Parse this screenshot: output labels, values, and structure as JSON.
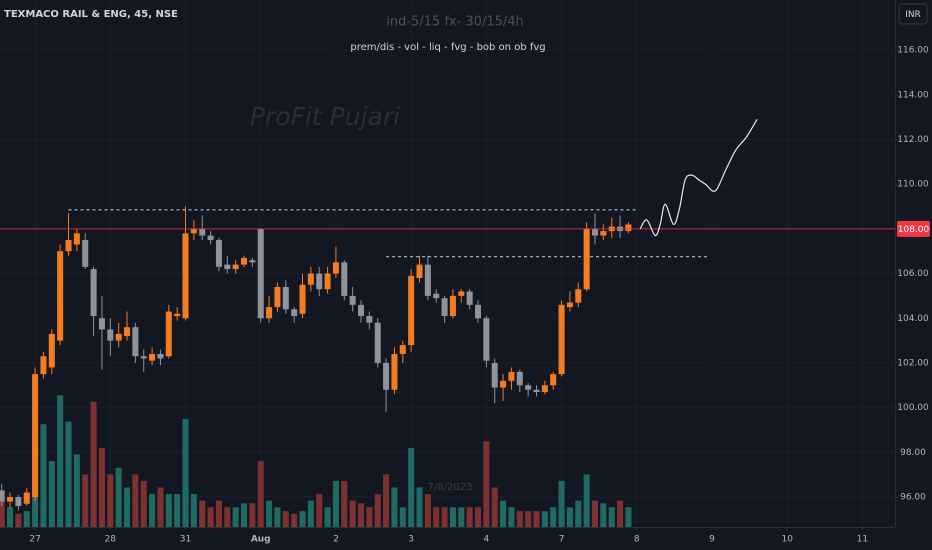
{
  "chart_data": {
    "type": "candlestick",
    "title": "TEXMACO RAIL & ENG, 45, NSE",
    "subtitle": "ind-5/15 fx- 30/15/4h",
    "annotation": "prem/dis - vol - liq - fvg - bob on ob fvg",
    "watermark": "ProFit Pujari",
    "date_label": "7/8/2023",
    "currency": "INR",
    "up_color": "#f57c1f",
    "down_color": "#8f939c",
    "volume_up_color": "#1f6b63",
    "volume_down_color": "#7d3131",
    "xlim": [
      -0.2,
      106.9
    ],
    "xticks": [
      {
        "value": 4,
        "label": "27"
      },
      {
        "value": 13,
        "label": "28"
      },
      {
        "value": 22,
        "label": "31"
      },
      {
        "value": 31,
        "label": "Aug"
      },
      {
        "value": 40,
        "label": "2"
      },
      {
        "value": 49,
        "label": "3"
      },
      {
        "value": 58,
        "label": "4"
      },
      {
        "value": 67,
        "label": "7"
      },
      {
        "value": 76,
        "label": "8"
      },
      {
        "value": 85,
        "label": "9"
      },
      {
        "value": 94,
        "label": "10"
      },
      {
        "value": 103,
        "label": "11"
      }
    ],
    "ylim": [
      94.66,
      118.24
    ],
    "yticks": [
      {
        "value": 96,
        "label": "96.00"
      },
      {
        "value": 98,
        "label": "98.00"
      },
      {
        "value": 100,
        "label": "100.00"
      },
      {
        "value": 102,
        "label": "102.00"
      },
      {
        "value": 104,
        "label": "104.00"
      },
      {
        "value": 106,
        "label": "106.00"
      },
      {
        "value": 110,
        "label": "110.00"
      },
      {
        "value": 112,
        "label": "112.00"
      },
      {
        "value": 114,
        "label": "114.00"
      },
      {
        "value": 116,
        "label": "116.00"
      }
    ],
    "grid": true,
    "volume_lim": [
      0,
      400
    ],
    "x": [
      0,
      1,
      2,
      3,
      4,
      5,
      6,
      7,
      8,
      9,
      10,
      11,
      12,
      13,
      14,
      15,
      16,
      17,
      18,
      19,
      20,
      21,
      22,
      23,
      24,
      25,
      26,
      27,
      28,
      29,
      30,
      31,
      32,
      33,
      34,
      35,
      36,
      37,
      38,
      39,
      40,
      41,
      42,
      43,
      44,
      45,
      46,
      47,
      48,
      49,
      50,
      51,
      52,
      53,
      54,
      55,
      56,
      57,
      58,
      59,
      60,
      61,
      62,
      63,
      64,
      65,
      66,
      67,
      68,
      69,
      70,
      71,
      72,
      73,
      74,
      75
    ],
    "open": [
      96.3,
      95.8,
      96,
      95.7,
      96,
      101.5,
      101.8,
      103,
      107,
      107.3,
      107.5,
      106.2,
      104,
      103.5,
      103,
      103.2,
      103.6,
      102.3,
      102.1,
      102.4,
      102.3,
      104.1,
      104,
      107.8,
      108,
      107.7,
      107.5,
      106.4,
      106.2,
      106.4,
      106.6,
      108,
      104,
      104.5,
      105.4,
      104.4,
      104.2,
      105.5,
      106,
      105.3,
      106,
      106.5,
      105,
      104.6,
      104.1,
      103.8,
      102,
      100.8,
      102.4,
      102.8,
      105.8,
      106.4,
      105.1,
      104.9,
      104.1,
      105,
      105.2,
      104.6,
      104,
      102,
      100.9,
      101.2,
      101.6,
      101,
      100.8,
      100.7,
      101,
      101.5,
      104.5,
      104.7,
      105.3,
      108,
      107.7,
      107.9,
      108.1,
      107.9
    ],
    "high": [
      96.6,
      96.2,
      96.1,
      96.4,
      101.8,
      102.5,
      103.5,
      107.3,
      108.7,
      108,
      107.8,
      106.3,
      105,
      104,
      103.8,
      104.3,
      103.8,
      102.6,
      102.7,
      102.6,
      104.6,
      104.5,
      109,
      108.4,
      108.6,
      107.9,
      107.6,
      106.8,
      106.6,
      106.8,
      106.7,
      108,
      105,
      105.6,
      105.7,
      104.5,
      106,
      106.3,
      106.3,
      106.3,
      107.2,
      106.6,
      105.4,
      104.8,
      104.3,
      104,
      102.2,
      102.7,
      103,
      106.2,
      106.8,
      106.8,
      105.3,
      105,
      105.3,
      105.3,
      105.3,
      104.8,
      104.1,
      102.2,
      101.5,
      101.8,
      101.7,
      101.1,
      101,
      101.2,
      101.6,
      104.8,
      105.2,
      105.6,
      108.3,
      108.7,
      108.2,
      108.5,
      108.6,
      108.3
    ],
    "low": [
      95.6,
      95.5,
      95.4,
      95.6,
      95.8,
      101.3,
      101.5,
      102.8,
      106.8,
      107,
      106.2,
      103.2,
      101.7,
      102.3,
      102.7,
      103,
      102,
      101.6,
      101.9,
      101.9,
      102.2,
      103.9,
      103.9,
      107.5,
      107.5,
      107.3,
      106.1,
      106,
      106,
      106.3,
      106.3,
      103.8,
      103.8,
      104.3,
      104.2,
      103.8,
      104,
      105.2,
      105,
      105.1,
      105.8,
      104.8,
      104.3,
      103.8,
      103.5,
      101.8,
      99.8,
      100.6,
      102,
      102.5,
      105.6,
      104.8,
      104.7,
      103.8,
      104,
      104.7,
      104.4,
      103.8,
      101.8,
      100.2,
      100.3,
      100.8,
      100.7,
      100.5,
      100.5,
      100.6,
      100.8,
      101.4,
      104.3,
      104.5,
      105.2,
      107.3,
      107.5,
      107.6,
      107.6,
      107.8
    ],
    "close": [
      95.8,
      96,
      95.6,
      96.2,
      101.5,
      102.3,
      103.3,
      107,
      107.5,
      107.8,
      106.3,
      104.1,
      103.5,
      103,
      103.3,
      103.6,
      102.3,
      102.2,
      102.4,
      102.2,
      104.3,
      104.2,
      107.8,
      108,
      107.7,
      107.5,
      106.3,
      106.2,
      106.4,
      106.7,
      106.5,
      104,
      104.5,
      105.4,
      104.4,
      104.1,
      105.5,
      106,
      105.3,
      106,
      106.5,
      105,
      104.6,
      104.1,
      103.8,
      102,
      100.8,
      102.4,
      102.8,
      105.9,
      106.4,
      105,
      104.9,
      104.1,
      105,
      105.2,
      104.6,
      104,
      102.1,
      100.9,
      101.2,
      101.6,
      101,
      100.8,
      100.7,
      101,
      101.5,
      104.6,
      104.7,
      105.3,
      108,
      107.7,
      107.9,
      108.1,
      107.9,
      108.2
    ],
    "volume": [
      20,
      15,
      10,
      12,
      76,
      78,
      50,
      100,
      80,
      55,
      40,
      95,
      60,
      40,
      45,
      30,
      40,
      35,
      25,
      30,
      25,
      25,
      82,
      25,
      20,
      15,
      20,
      15,
      15,
      18,
      18,
      50,
      20,
      15,
      12,
      10,
      12,
      20,
      25,
      15,
      35,
      35,
      20,
      18,
      15,
      25,
      40,
      30,
      15,
      60,
      30,
      25,
      15,
      15,
      15,
      15,
      15,
      15,
      65,
      30,
      20,
      15,
      12,
      12,
      12,
      12,
      15,
      35,
      15,
      20,
      40,
      20,
      18,
      15,
      20,
      15
    ],
    "levels": [
      {
        "value": 108.85,
        "x": [
          8,
          76
        ]
      },
      {
        "value": 106.75,
        "x": [
          46,
          84.4
        ]
      }
    ],
    "last_price": {
      "value": 108,
      "label": "108.00",
      "color": "#f23645"
    },
    "projection": {
      "x": [
        76.4,
        77.2,
        78.2,
        78.8,
        79.4,
        80.4,
        81.1,
        81.8,
        82.6,
        83.4,
        84.2,
        85.4,
        86.6,
        87.8,
        89.1,
        90.4
      ],
      "y": [
        108.0,
        108.4,
        107.7,
        108.2,
        109.1,
        108.2,
        108.9,
        110.2,
        110.4,
        110.2,
        110.0,
        109.7,
        110.6,
        111.5,
        112.1,
        112.9
      ]
    }
  }
}
